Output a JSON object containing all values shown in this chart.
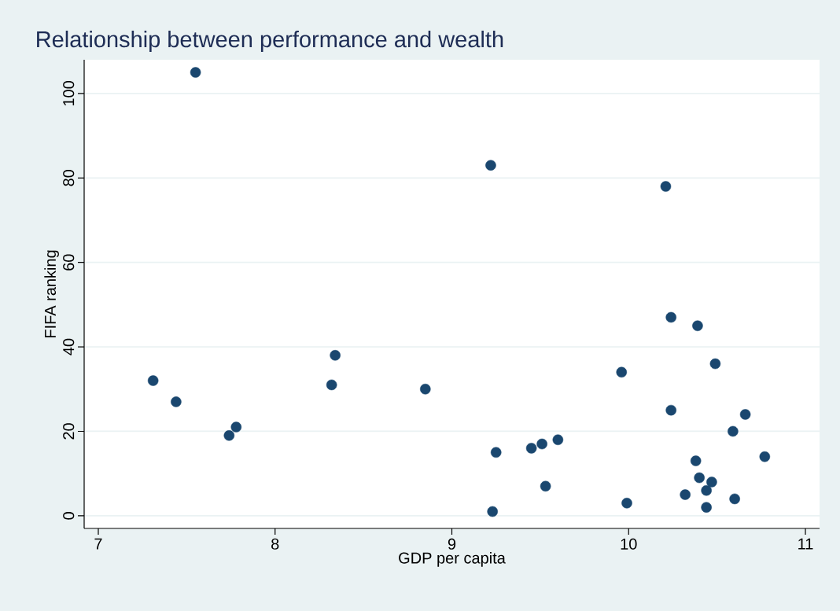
{
  "chart_data": {
    "type": "scatter",
    "title": "Relationship between performance and wealth",
    "xlabel": "GDP per capita",
    "ylabel": "FIFA ranking",
    "x": [
      7.55,
      7.31,
      7.44,
      7.74,
      7.78,
      8.32,
      8.34,
      8.85,
      9.22,
      9.23,
      9.25,
      9.45,
      9.51,
      9.53,
      9.6,
      9.96,
      9.99,
      10.21,
      10.24,
      10.24,
      10.39,
      10.49,
      10.38,
      10.32,
      10.4,
      10.44,
      10.47,
      10.44,
      10.59,
      10.6,
      10.66,
      10.77
    ],
    "values": [
      105,
      32,
      27,
      19,
      21,
      31,
      38,
      30,
      83,
      1,
      15,
      16,
      17,
      7,
      18,
      34,
      3,
      78,
      47,
      25,
      45,
      36,
      13,
      5,
      9,
      6,
      8,
      2,
      20,
      4,
      24,
      14
    ],
    "color": "#1a476f",
    "marker": "circle",
    "grid": "y",
    "xlim": [
      6.92,
      11.08
    ],
    "ylim": [
      -3,
      108
    ],
    "xticks": [
      7,
      8,
      9,
      10,
      11
    ],
    "yticks": [
      0,
      20,
      40,
      60,
      80,
      100
    ]
  }
}
